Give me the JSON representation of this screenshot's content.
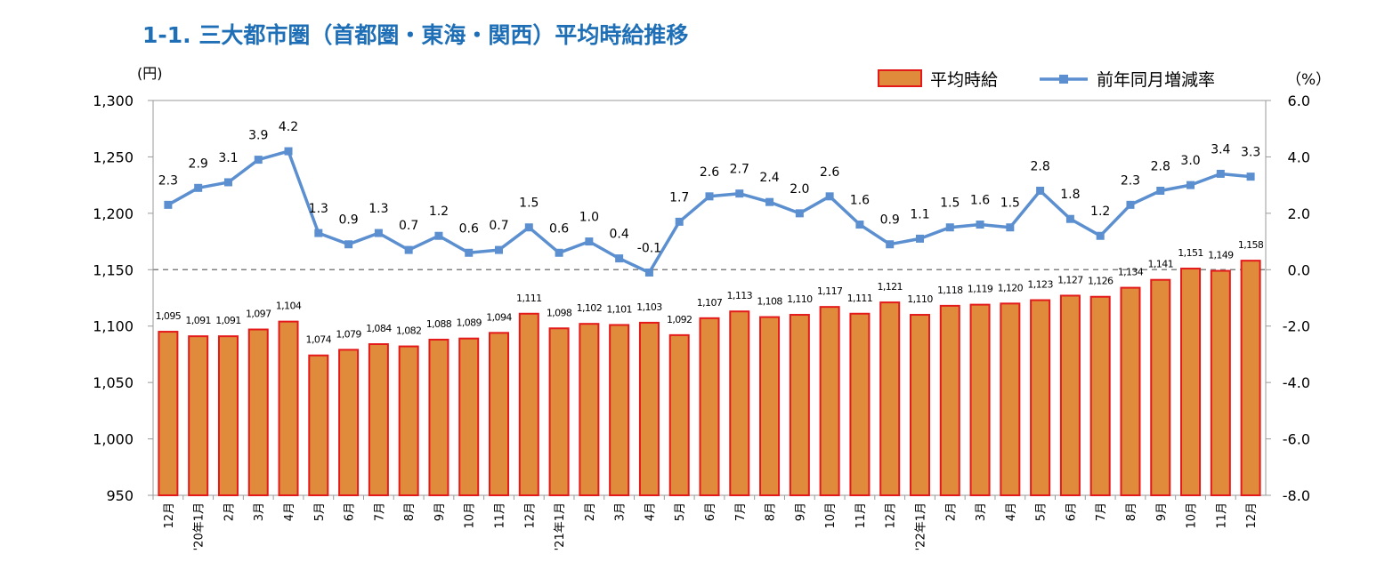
{
  "title": "1-1. 三大都市圏（首都圏・東海・関西）平均時給推移",
  "chart_data": {
    "type": "bar+line",
    "title": "1-1. 三大都市圏（首都圏・東海・関西）平均時給推移",
    "left_axis_unit": "(円)",
    "right_axis_unit": "（%）",
    "left_ylim": [
      950,
      1300
    ],
    "left_ticks": [
      950,
      1000,
      1050,
      1100,
      1150,
      1200,
      1250,
      1300
    ],
    "left_tick_labels": [
      "950",
      "1,000",
      "1,050",
      "1,100",
      "1,150",
      "1,200",
      "1,250",
      "1,300"
    ],
    "right_ylim": [
      -8.0,
      6.0
    ],
    "right_ticks": [
      -8,
      -6,
      -4,
      -2,
      0,
      2,
      4,
      6
    ],
    "right_tick_labels": [
      "-8.0",
      "-6.0",
      "-4.0",
      "-2.0",
      "0.0",
      "2.0",
      "4.0",
      "6.0"
    ],
    "legend_position": "top-right",
    "colors": {
      "bar_fill": "#E08A3C",
      "bar_stroke": "#E41A1A",
      "line": "#5B8FD0",
      "title": "#1F6FB7",
      "zero_line": "#808080"
    },
    "categories": [
      "12月",
      "'20年1月",
      "2月",
      "3月",
      "4月",
      "5月",
      "6月",
      "7月",
      "8月",
      "9月",
      "10月",
      "11月",
      "12月",
      "'21年1月",
      "2月",
      "3月",
      "4月",
      "5月",
      "6月",
      "7月",
      "8月",
      "9月",
      "10月",
      "11月",
      "12月",
      "'22年1月",
      "2月",
      "3月",
      "4月",
      "5月",
      "6月",
      "7月",
      "8月",
      "9月",
      "10月",
      "11月",
      "12月"
    ],
    "series": [
      {
        "name": "平均時給",
        "kind": "bar",
        "axis": "left",
        "values": [
          1095,
          1091,
          1091,
          1097,
          1104,
          1074,
          1079,
          1084,
          1082,
          1088,
          1089,
          1094,
          1111,
          1098,
          1102,
          1101,
          1103,
          1092,
          1107,
          1113,
          1108,
          1110,
          1117,
          1111,
          1121,
          1110,
          1118,
          1119,
          1120,
          1123,
          1127,
          1126,
          1134,
          1141,
          1151,
          1149,
          1158
        ],
        "labels": [
          "1,095",
          "1,091",
          "1,091",
          "1,097",
          "1,104",
          "1,074",
          "1,079",
          "1,084",
          "1,082",
          "1,088",
          "1,089",
          "1,094",
          "1,111",
          "1,098",
          "1,102",
          "1,101",
          "1,103",
          "1,092",
          "1,107",
          "1,113",
          "1,108",
          "1,110",
          "1,117",
          "1,111",
          "1,121",
          "1,110",
          "1,118",
          "1,119",
          "1,120",
          "1,123",
          "1,127",
          "1,126",
          "1,134",
          "1,141",
          "1,151",
          "1,149",
          "1,158"
        ]
      },
      {
        "name": "前年同月増減率",
        "kind": "line",
        "axis": "right",
        "values": [
          2.3,
          2.9,
          3.1,
          3.9,
          4.2,
          1.3,
          0.9,
          1.3,
          0.7,
          1.2,
          0.6,
          0.7,
          1.5,
          0.6,
          1.0,
          0.4,
          -0.1,
          1.7,
          2.6,
          2.7,
          2.4,
          2.0,
          2.6,
          1.6,
          0.9,
          1.1,
          1.5,
          1.6,
          1.5,
          2.8,
          1.8,
          1.2,
          2.3,
          2.8,
          3.0,
          3.4,
          3.3
        ],
        "labels": [
          "2.3",
          "2.9",
          "3.1",
          "3.9",
          "4.2",
          "1.3",
          "0.9",
          "1.3",
          "0.7",
          "1.2",
          "0.6",
          "0.7",
          "1.5",
          "0.6",
          "1.0",
          "0.4",
          "-0.1",
          "1.7",
          "2.6",
          "2.7",
          "2.4",
          "2.0",
          "2.6",
          "1.6",
          "0.9",
          "1.1",
          "1.5",
          "1.6",
          "1.5",
          "2.8",
          "1.8",
          "1.2",
          "2.3",
          "2.8",
          "3.0",
          "3.4",
          "3.3"
        ]
      }
    ]
  }
}
